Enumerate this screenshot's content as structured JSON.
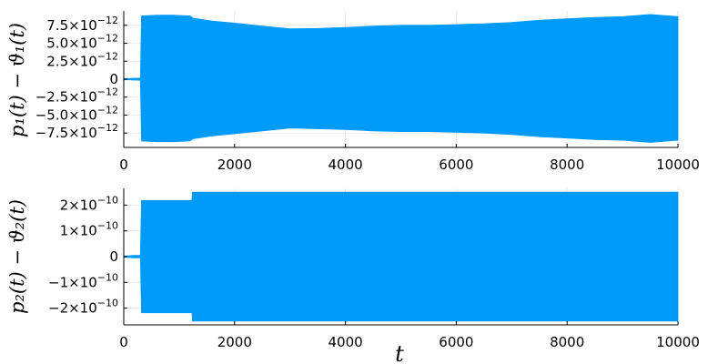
{
  "chart_data": [
    {
      "type": "area",
      "ylabel": "p₁(t) − ϑ₁(t)",
      "xlabel": "",
      "xlim": [
        0,
        10000
      ],
      "ylim": [
        -9.5e-12,
        9.5e-12
      ],
      "x_ticks": [
        {
          "value": 0,
          "label": "0"
        },
        {
          "value": 2000,
          "label": "2000"
        },
        {
          "value": 4000,
          "label": "4000"
        },
        {
          "value": 6000,
          "label": "6000"
        },
        {
          "value": 8000,
          "label": "8000"
        },
        {
          "value": 10000,
          "label": "10000"
        }
      ],
      "y_ticks": [
        {
          "value": 7.5e-12,
          "mantissa": "7.5×10",
          "exponent": "−12"
        },
        {
          "value": 5e-12,
          "mantissa": "5.0×10",
          "exponent": "−12"
        },
        {
          "value": 2.5e-12,
          "mantissa": "2.5×10",
          "exponent": "−12"
        },
        {
          "value": 0,
          "mantissa": "0",
          "exponent": ""
        },
        {
          "value": -2.5e-12,
          "mantissa": "−2.5×10",
          "exponent": "−12"
        },
        {
          "value": -5e-12,
          "mantissa": "−5.0×10",
          "exponent": "−12"
        },
        {
          "value": -7.5e-12,
          "mantissa": "−7.5×10",
          "exponent": "−12"
        }
      ],
      "grid": true,
      "color": "#009af9",
      "series": [
        {
          "x": [
            0,
            150,
            300,
            320,
            600,
            900,
            1200,
            1250,
            1600,
            2000,
            2500,
            3000,
            3500,
            4000,
            4500,
            5000,
            5500,
            6000,
            6500,
            7000,
            7500,
            8000,
            8500,
            9000,
            9500,
            10000
          ],
          "upper": [
            0,
            1e-13,
            1.5e-13,
            8.8e-12,
            8.9e-12,
            8.9e-12,
            8.8e-12,
            8.5e-12,
            8.1e-12,
            7.8e-12,
            7.4e-12,
            7e-12,
            7.05e-12,
            7.2e-12,
            7.4e-12,
            7.5e-12,
            7.5e-12,
            7.6e-12,
            7.7e-12,
            7.9e-12,
            8.2e-12,
            8.4e-12,
            8.6e-12,
            8.7e-12,
            9e-12,
            8.7e-12
          ],
          "lower": [
            0,
            -1e-13,
            -1.5e-13,
            -8.6e-12,
            -8.7e-12,
            -8.7e-12,
            -8.6e-12,
            -8.3e-12,
            -7.9e-12,
            -7.6e-12,
            -7.2e-12,
            -6.8e-12,
            -6.9e-12,
            -7e-12,
            -7.2e-12,
            -7.3e-12,
            -7.3e-12,
            -7.4e-12,
            -7.5e-12,
            -7.7e-12,
            -8e-12,
            -8.2e-12,
            -8.4e-12,
            -8.5e-12,
            -8.8e-12,
            -8.5e-12
          ]
        }
      ]
    },
    {
      "type": "area",
      "ylabel": "p₂(t) − ϑ₂(t)",
      "xlabel": "t",
      "xlim": [
        0,
        10000
      ],
      "ylim": [
        -2.65e-10,
        2.65e-10
      ],
      "x_ticks": [
        {
          "value": 0,
          "label": "0"
        },
        {
          "value": 2000,
          "label": "2000"
        },
        {
          "value": 4000,
          "label": "4000"
        },
        {
          "value": 6000,
          "label": "6000"
        },
        {
          "value": 8000,
          "label": "8000"
        },
        {
          "value": 10000,
          "label": "10000"
        }
      ],
      "y_ticks": [
        {
          "value": 2e-10,
          "mantissa": "2×10",
          "exponent": "−10"
        },
        {
          "value": 1e-10,
          "mantissa": "1×10",
          "exponent": "−10"
        },
        {
          "value": 0,
          "mantissa": "0",
          "exponent": ""
        },
        {
          "value": -1e-10,
          "mantissa": "−1×10",
          "exponent": "−10"
        },
        {
          "value": -2e-10,
          "mantissa": "−2×10",
          "exponent": "−10"
        }
      ],
      "grid": true,
      "color": "#009af9",
      "series": [
        {
          "x": [
            0,
            150,
            300,
            320,
            1230,
            1240,
            10000
          ],
          "upper": [
            0,
            5e-12,
            5e-12,
            2.18e-10,
            2.18e-10,
            2.5e-10,
            2.5e-10
          ],
          "lower": [
            0,
            -5e-12,
            -5e-12,
            -2.18e-10,
            -2.18e-10,
            -2.5e-10,
            -2.5e-10
          ]
        }
      ]
    }
  ]
}
